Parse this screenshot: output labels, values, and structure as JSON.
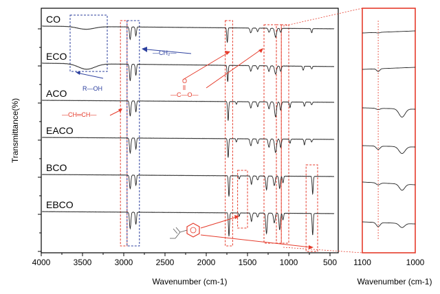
{
  "chart_data": [
    {
      "type": "line",
      "xlabel": "Wavenumber (cm-1)",
      "ylabel": "Transmittance(%)",
      "xlim": [
        4000,
        400
      ],
      "x_ticks": [
        4000,
        3500,
        3000,
        2500,
        2000,
        1500,
        1000,
        500
      ],
      "x_tick_labels": [
        "4000",
        "3500",
        "3000",
        "2500",
        "2000",
        "1500",
        "1000",
        "500"
      ],
      "x_reversed": true,
      "y_ticks_labeled": false,
      "series": [
        {
          "name": "CO",
          "offset": 0,
          "base_trend": 0.4,
          "peaks": [
            [
              2922,
              18,
              12
            ],
            [
              2853,
              13,
              10
            ],
            [
              1745,
              22,
              9
            ],
            [
              1460,
              7,
              14
            ],
            [
              1377,
              5,
              12
            ],
            [
              1238,
              6,
              14
            ],
            [
              1160,
              13,
              16
            ],
            [
              1098,
              6,
              12
            ],
            [
              722,
              6,
              10
            ],
            [
              3460,
              4,
              140
            ]
          ]
        },
        {
          "name": "ECO",
          "offset": 1,
          "base_trend": 0.5,
          "peaks": [
            [
              2922,
              24,
              12
            ],
            [
              2853,
              16,
              10
            ],
            [
              1740,
              24,
              9
            ],
            [
              1460,
              8,
              14
            ],
            [
              1377,
              5,
              12
            ],
            [
              1240,
              8,
              14
            ],
            [
              1160,
              12,
              16
            ],
            [
              1098,
              8,
              12
            ],
            [
              825,
              6,
              10
            ],
            [
              722,
              4,
              10
            ],
            [
              3450,
              8,
              140
            ]
          ]
        },
        {
          "name": "ACO",
          "offset": 2,
          "base_trend": 0.3,
          "peaks": [
            [
              2922,
              22,
              12
            ],
            [
              2853,
              16,
              10
            ],
            [
              1735,
              28,
              9
            ],
            [
              1635,
              4,
              8
            ],
            [
              1460,
              9,
              14
            ],
            [
              1377,
              7,
              12
            ],
            [
              1240,
              10,
              14
            ],
            [
              1160,
              22,
              16
            ],
            [
              1098,
              12,
              12
            ],
            [
              985,
              8,
              10
            ],
            [
              810,
              6,
              10
            ],
            [
              722,
              4,
              10
            ]
          ]
        },
        {
          "name": "EACO",
          "offset": 3,
          "base_trend": 0.3,
          "peaks": [
            [
              2922,
              22,
              12
            ],
            [
              2853,
              16,
              10
            ],
            [
              1735,
              28,
              9
            ],
            [
              1635,
              5,
              8
            ],
            [
              1460,
              10,
              14
            ],
            [
              1377,
              7,
              12
            ],
            [
              1240,
              12,
              14
            ],
            [
              1160,
              20,
              16
            ],
            [
              1098,
              12,
              12
            ],
            [
              985,
              6,
              10
            ],
            [
              810,
              8,
              10
            ],
            [
              722,
              4,
              10
            ]
          ]
        },
        {
          "name": "BCO",
          "offset": 4,
          "base_trend": 0.3,
          "peaks": [
            [
              2922,
              20,
              12
            ],
            [
              2853,
              15,
              10
            ],
            [
              1725,
              30,
              9
            ],
            [
              1600,
              5,
              8
            ],
            [
              1452,
              12,
              12
            ],
            [
              1377,
              6,
              12
            ],
            [
              1270,
              20,
              12
            ],
            [
              1175,
              14,
              14
            ],
            [
              1110,
              18,
              12
            ],
            [
              1070,
              10,
              10
            ],
            [
              710,
              26,
              9
            ]
          ]
        },
        {
          "name": "EBCO",
          "offset": 5,
          "base_trend": 0.3,
          "peaks": [
            [
              2922,
              24,
              12
            ],
            [
              2853,
              18,
              10
            ],
            [
              1725,
              34,
              9
            ],
            [
              1600,
              5,
              8
            ],
            [
              1452,
              12,
              12
            ],
            [
              1377,
              6,
              12
            ],
            [
              1270,
              30,
              12
            ],
            [
              1175,
              14,
              14
            ],
            [
              1110,
              24,
              12
            ],
            [
              1070,
              10,
              10
            ],
            [
              710,
              32,
              9
            ]
          ]
        }
      ],
      "annotations": [
        {
          "text": "R—OH",
          "color": "#2b3f9e"
        },
        {
          "text": "—CH₂—",
          "color": "#2b3f9e"
        },
        {
          "text": "—CH═CH—",
          "color": "#e53a2a"
        },
        {
          "text": "O",
          "color": "#e53a2a"
        },
        {
          "text": "—C—O—",
          "color": "#e53a2a"
        }
      ],
      "highlight_regions": [
        {
          "x_range": [
            3650,
            3200
          ],
          "color": "#2b3f9e"
        },
        {
          "x_range": [
            3040,
            2960
          ],
          "color": "#e53a2a"
        },
        {
          "x_range": [
            2960,
            2810
          ],
          "color": "#2b3f9e"
        },
        {
          "x_range": [
            1770,
            1680
          ],
          "color": "#e53a2a"
        },
        {
          "x_range": [
            1620,
            1500
          ],
          "color": "#e53a2a"
        },
        {
          "x_range": [
            1300,
            1150
          ],
          "color": "#e53a2a"
        },
        {
          "x_range": [
            1150,
            1090
          ],
          "color": "#e53a2a"
        },
        {
          "x_range": [
            1090,
            1000
          ],
          "color": "#e53a2a"
        },
        {
          "x_range": [
            790,
            650
          ],
          "color": "#e53a2a"
        }
      ]
    },
    {
      "type": "line",
      "xlabel": "Wavenumber (cm-1)",
      "xlim": [
        1100,
        1000
      ],
      "x_tick_labels": [
        "1100",
        "1000"
      ],
      "x_reversed": true,
      "marker_line_x": 1070,
      "series": [
        {
          "name": "CO",
          "offset": 0,
          "trend": [
            0,
            -3
          ],
          "peaks": [
            [
              1070,
              1,
              4
            ]
          ]
        },
        {
          "name": "ECO",
          "offset": 1,
          "trend": [
            0,
            -3
          ],
          "peaks": [
            [
              1070,
              4,
              4
            ]
          ]
        },
        {
          "name": "ACO",
          "offset": 2,
          "trend": [
            0,
            2
          ],
          "peaks": [
            [
              1070,
              2,
              5
            ],
            [
              1025,
              12,
              8
            ]
          ]
        },
        {
          "name": "EACO",
          "offset": 3,
          "trend": [
            0,
            2
          ],
          "peaks": [
            [
              1070,
              5,
              5
            ],
            [
              1025,
              10,
              8
            ]
          ]
        },
        {
          "name": "BCO",
          "offset": 4,
          "trend": [
            0,
            4
          ],
          "peaks": [
            [
              1070,
              3,
              5
            ],
            [
              1025,
              9,
              7
            ]
          ]
        },
        {
          "name": "EBCO",
          "offset": 5,
          "trend": [
            0,
            3
          ],
          "peaks": [
            [
              1070,
              6,
              5
            ],
            [
              1025,
              6,
              7
            ]
          ]
        }
      ]
    }
  ]
}
